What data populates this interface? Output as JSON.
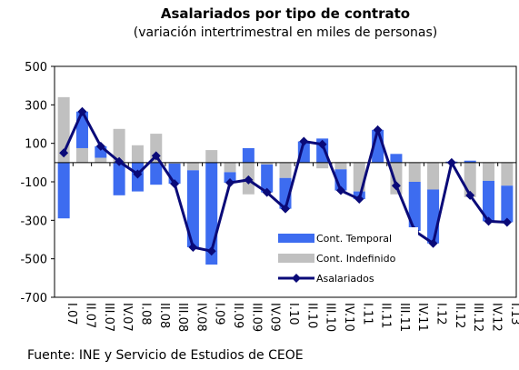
{
  "chart_data": {
    "type": "bar_line",
    "title": "Asalariados por tipo de contrato",
    "subtitle": "(variación intertrimestral en miles de personas)",
    "source": "Fuente: INE y Servicio de Estudios de CEOE",
    "categories": [
      "I.07",
      "II.07",
      "III.07",
      "IV.07",
      "I.08",
      "II.08",
      "III.08",
      "IV.08",
      "I.09",
      "II.09",
      "III.09",
      "IV.09",
      "I.10",
      "II.10",
      "III.10",
      "IV.10",
      "I.11",
      "II.11",
      "III.11",
      "IV.11",
      "I.12",
      "II.12",
      "III.12",
      "IV.12",
      "I.13"
    ],
    "series": [
      {
        "name": "Cont. Temporal",
        "kind": "bar",
        "color": "#3d6cf0",
        "values": [
          -290,
          190,
          60,
          -170,
          -150,
          -115,
          -105,
          -400,
          -530,
          -55,
          75,
          -145,
          -160,
          110,
          125,
          -110,
          -40,
          170,
          45,
          -255,
          -280,
          5,
          10,
          -210,
          -190
        ]
      },
      {
        "name": "Cont. Indefinido",
        "kind": "bar",
        "color": "#c0c0c0",
        "values": [
          340,
          75,
          25,
          175,
          90,
          150,
          -5,
          -40,
          65,
          -50,
          -165,
          -10,
          -80,
          0,
          -30,
          -35,
          -150,
          0,
          -165,
          -100,
          -140,
          -5,
          -180,
          -95,
          -120
        ]
      },
      {
        "name": "Asalariados",
        "kind": "line",
        "color": "#0a0a78",
        "values": [
          50,
          265,
          85,
          5,
          -60,
          35,
          -110,
          -440,
          -460,
          -105,
          -90,
          -155,
          -240,
          110,
          95,
          -145,
          -190,
          170,
          -120,
          -355,
          -420,
          0,
          -170,
          -305,
          -310
        ]
      }
    ],
    "ylim": [
      -700,
      500
    ],
    "yticks": [
      -700,
      -500,
      -300,
      -100,
      100,
      300,
      500
    ],
    "legend": "lower-right"
  }
}
